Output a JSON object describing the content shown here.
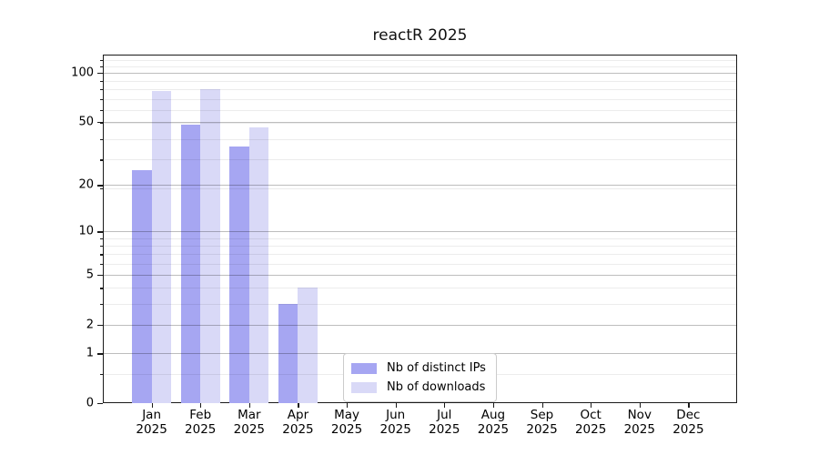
{
  "chart_data": {
    "type": "bar",
    "title": "reactR 2025",
    "categories": [
      "Jan",
      "Feb",
      "Mar",
      "Apr",
      "May",
      "Jun",
      "Jul",
      "Aug",
      "Sep",
      "Oct",
      "Nov",
      "Dec"
    ],
    "year_label": "2025",
    "series": [
      {
        "name": "Nb of distinct IPs",
        "color": "#a6a6f2",
        "values": [
          25,
          48,
          35,
          3,
          0,
          0,
          0,
          0,
          0,
          0,
          0,
          0
        ]
      },
      {
        "name": "Nb of downloads",
        "color": "#d9d9f7",
        "values": [
          77,
          79,
          46,
          4,
          0,
          0,
          0,
          0,
          0,
          0,
          0,
          0
        ]
      }
    ],
    "xlabel": "",
    "ylabel": "",
    "yscale": "log1p",
    "yticks": [
      0,
      1,
      2,
      5,
      10,
      20,
      50,
      100
    ],
    "yticks_minor": [
      0.5,
      3,
      4,
      6,
      7,
      8,
      9,
      19,
      29,
      39,
      49,
      59,
      69,
      79,
      89,
      109,
      119
    ],
    "ylim": [
      0,
      128
    ],
    "grid": "horizontal, drawn over bars",
    "legend_position": "lower center"
  }
}
